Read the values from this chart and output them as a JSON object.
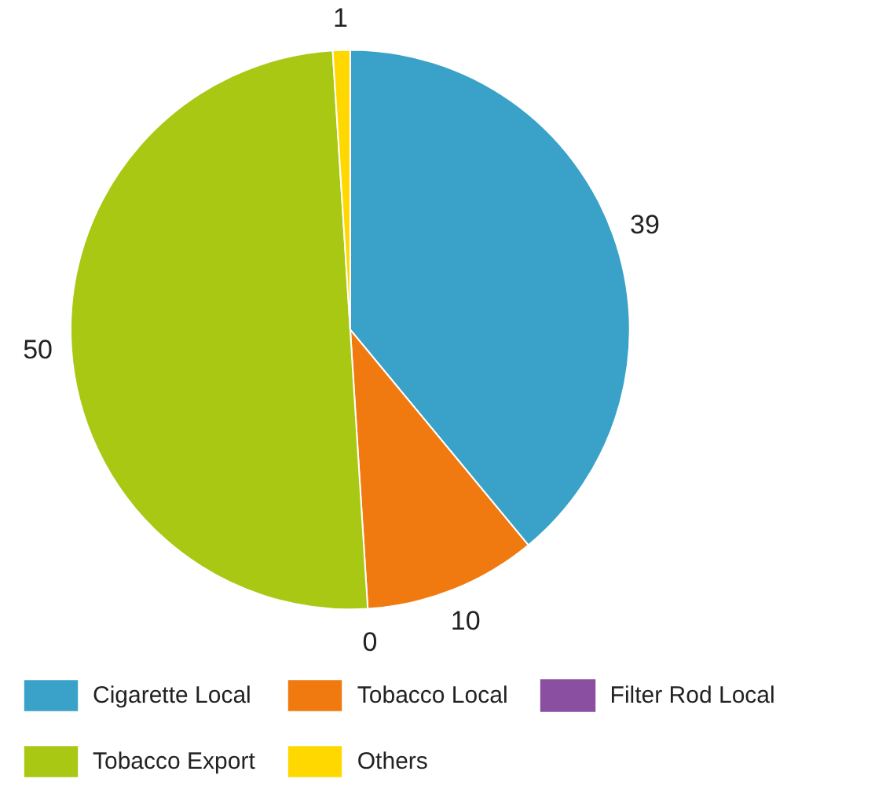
{
  "chart_data": {
    "type": "pie",
    "categories": [
      "Cigarette Local",
      "Tobacco Local",
      "Filter Rod Local",
      "Tobacco Export",
      "Others"
    ],
    "values": [
      39,
      10,
      0,
      50,
      1
    ],
    "colors": [
      "#3aa2c8",
      "#f07a10",
      "#8a4fa0",
      "#a8c814",
      "#ffd800"
    ],
    "value_labels": [
      "39",
      "10",
      "0",
      "50",
      "1"
    ],
    "legend": "bottom"
  }
}
